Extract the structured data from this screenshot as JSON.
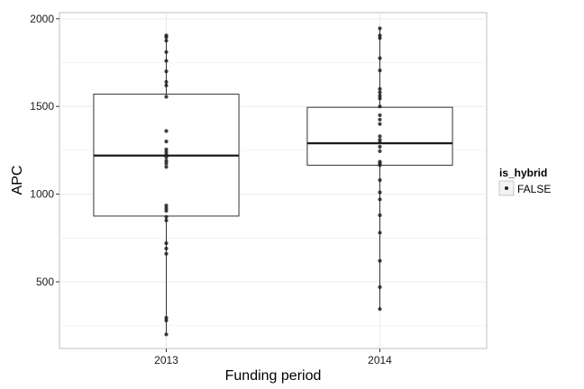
{
  "chart_data": {
    "type": "box",
    "title": "",
    "xlabel": "Funding period",
    "ylabel": "APC",
    "ylim": [
      120,
      2035
    ],
    "yticks": [
      500,
      1000,
      1500,
      2000
    ],
    "grid": true,
    "legend": {
      "title": "is_hybrid",
      "placement": "right",
      "entries": [
        "FALSE"
      ]
    },
    "categories": [
      "2013",
      "2014"
    ],
    "boxes": [
      {
        "category": "2013",
        "min": 200,
        "q1": 875,
        "median": 1220,
        "q3": 1570,
        "max": 1905
      },
      {
        "category": "2014",
        "min": 345,
        "q1": 1165,
        "median": 1290,
        "q3": 1495,
        "max": 1945
      }
    ],
    "points": [
      {
        "category": "2013",
        "values": [
          1905,
          1895,
          1875,
          1810,
          1760,
          1700,
          1640,
          1620,
          1555,
          1360,
          1300,
          1255,
          1240,
          1225,
          1210,
          1190,
          1175,
          1155,
          935,
          920,
          905,
          870,
          850,
          720,
          690,
          660,
          295,
          280,
          200
        ]
      },
      {
        "category": "2014",
        "values": [
          1945,
          1905,
          1890,
          1775,
          1705,
          1600,
          1580,
          1560,
          1545,
          1500,
          1450,
          1425,
          1400,
          1330,
          1310,
          1295,
          1270,
          1245,
          1185,
          1175,
          1165,
          1080,
          1010,
          970,
          880,
          780,
          620,
          470,
          345
        ]
      }
    ],
    "colors": {
      "point": "#1f1f1f",
      "box_line": "#333333",
      "grid": "#eaeaea",
      "panel_border": "#b0b0b0"
    }
  }
}
